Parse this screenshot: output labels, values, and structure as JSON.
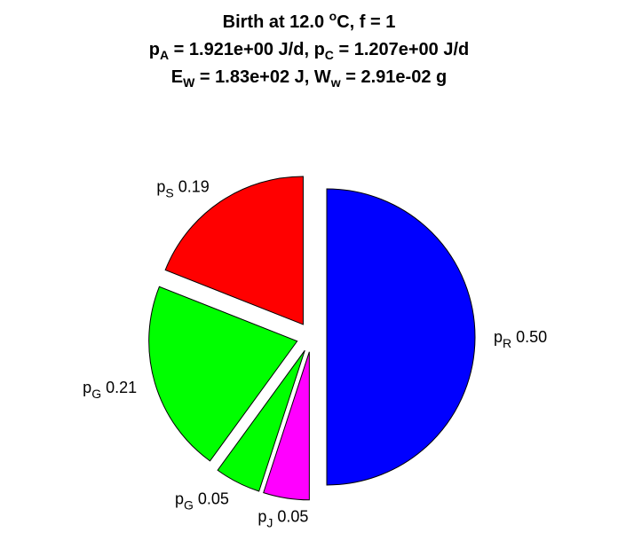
{
  "title": {
    "line1": {
      "text": "Birth at 12.0 ",
      "sup": "o",
      "tail": "C, f = 1"
    },
    "line2": {
      "a_main": "p",
      "a_sub": "A",
      "a_val": " = 1.921e+00 J/d, ",
      "c_main": "p",
      "c_sub": "C",
      "c_val": " = 1.207e+00 J/d"
    },
    "line3": {
      "e_main": "E",
      "e_sub": "W",
      "e_val": " = 1.83e+02 J, ",
      "w_main": "W",
      "w_sub": "w",
      "w_val": " = 2.91e-02 g"
    }
  },
  "chart_data": {
    "type": "pie",
    "slices": [
      {
        "main": "p",
        "sub": "R",
        "value": 0.5,
        "value_label": "0.50",
        "color": "#0000ff",
        "exploded": true
      },
      {
        "main": "p",
        "sub": "J",
        "value": 0.05,
        "value_label": "0.05",
        "color": "#ff00ff",
        "exploded": true
      },
      {
        "main": "p",
        "sub": "G",
        "value": 0.05,
        "value_label": "0.05",
        "color": "#00ff00",
        "exploded": true
      },
      {
        "main": "p",
        "sub": "G",
        "value": 0.21,
        "value_label": "0.21",
        "color": "#00ff00",
        "exploded": true
      },
      {
        "main": "p",
        "sub": "S",
        "value": 0.19,
        "value_label": "0.19",
        "color": "#ff0000",
        "exploded": true
      }
    ]
  }
}
